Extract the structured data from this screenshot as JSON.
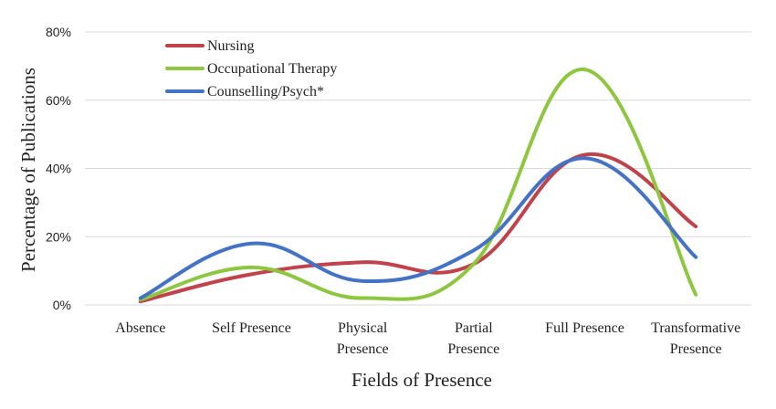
{
  "chart_data": {
    "type": "line",
    "categories": [
      [
        "Absence"
      ],
      [
        "Self Presence"
      ],
      [
        "Physical",
        "Presence"
      ],
      [
        "Partial",
        "Presence"
      ],
      [
        "Full Presence"
      ],
      [
        "Transformative",
        "Presence"
      ]
    ],
    "series": [
      {
        "name": "Nursing",
        "color": "#c0424b",
        "values": [
          1,
          9,
          12.5,
          12,
          44,
          23
        ]
      },
      {
        "name": "Occupational Therapy",
        "color": "#8ec640",
        "values": [
          1.5,
          11,
          2,
          12,
          69,
          3
        ]
      },
      {
        "name": "Counselling/Psych*",
        "color": "#4472c4",
        "values": [
          2,
          18,
          7,
          16,
          43,
          14
        ]
      }
    ],
    "xlabel": "Fields of Presence",
    "ylabel": "Percentage of Publications",
    "ylim": [
      0,
      80
    ],
    "yticks": [
      0,
      20,
      40,
      60,
      80
    ],
    "ytick_suffix": "%",
    "grid": true,
    "legend_position": "top-left"
  }
}
